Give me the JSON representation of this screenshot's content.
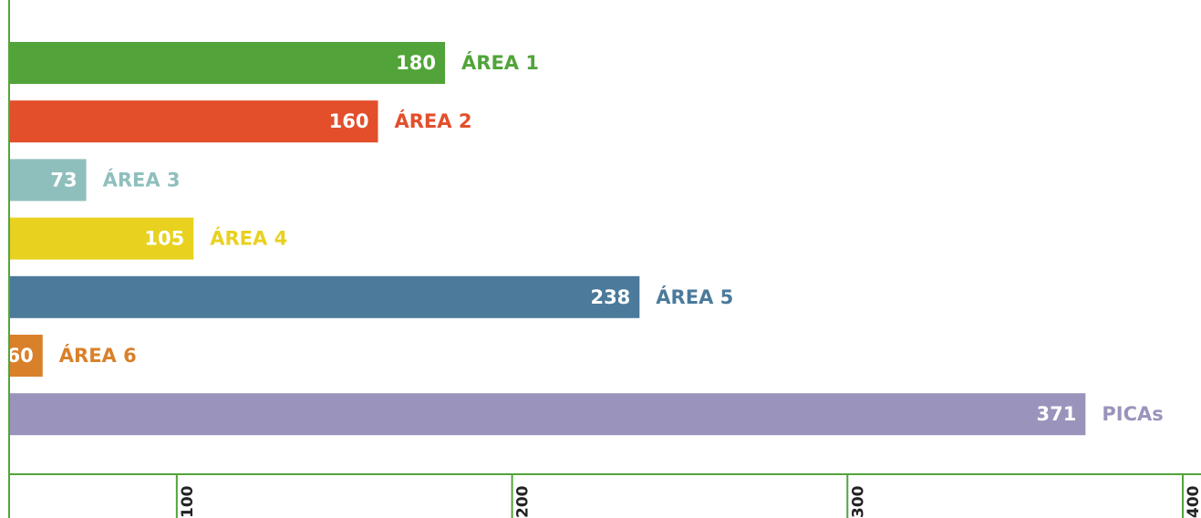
{
  "chart_data": {
    "type": "barh",
    "categories": [
      "ÁREA 1",
      "ÁREA 2",
      "ÁREA 3",
      "ÁREA 4",
      "ÁREA 5",
      "ÁREA 6",
      "PICAs"
    ],
    "values": [
      180,
      160,
      73,
      105,
      238,
      60,
      371
    ],
    "colors": [
      "#52a43a",
      "#e34e2b",
      "#8fbfbd",
      "#e8d11f",
      "#4b7a9b",
      "#d9802a",
      "#9a93bb"
    ],
    "xlim": [
      50,
      400
    ],
    "xticks": [
      100,
      200,
      300,
      400
    ],
    "axis_color": "#52a43a"
  }
}
